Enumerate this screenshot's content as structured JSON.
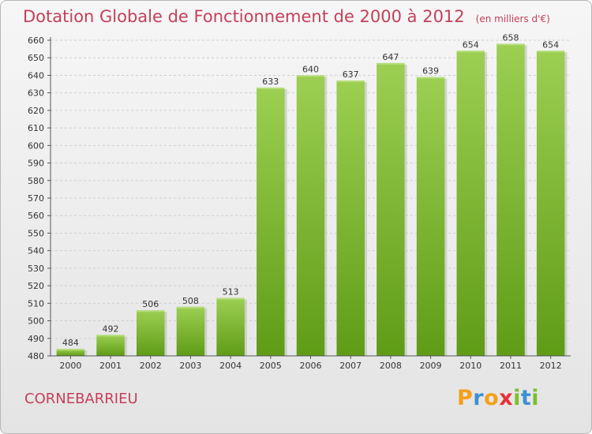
{
  "header": {
    "title": "Dotation Globale de Fonctionnement de 2000 à 2012",
    "unit": "(en milliers d'€)"
  },
  "footer": {
    "city": "CORNEBARRIEU",
    "brand": "Proxiti"
  },
  "colors": {
    "title": "#c4405a",
    "bar_top": "#9ccf52",
    "bar_bottom": "#5f9c16",
    "brand_letters": [
      "#f5a01a",
      "#3d8fd6",
      "#f5a01a",
      "#e8303a",
      "#7cbf2e",
      "#3d8fd6",
      "#7cbf2e"
    ]
  },
  "chart_data": {
    "type": "bar",
    "title": "Dotation Globale de Fonctionnement de 2000 à 2012",
    "xlabel": "",
    "ylabel": "",
    "categories": [
      "2000",
      "2001",
      "2002",
      "2003",
      "2004",
      "2005",
      "2006",
      "2007",
      "2008",
      "2009",
      "2010",
      "2011",
      "2012"
    ],
    "values": [
      484,
      492,
      506,
      508,
      513,
      633,
      640,
      637,
      647,
      639,
      654,
      658,
      654
    ],
    "ylim": [
      480,
      660
    ],
    "yticks": [
      480,
      490,
      500,
      510,
      520,
      530,
      540,
      550,
      560,
      570,
      580,
      590,
      600,
      610,
      620,
      630,
      640,
      650,
      660
    ],
    "grid": true,
    "legend": "none"
  }
}
